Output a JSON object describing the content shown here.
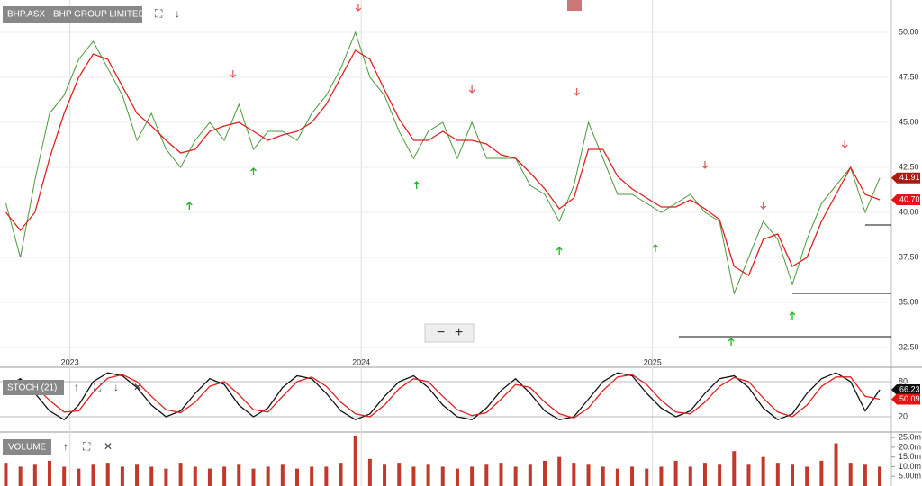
{
  "chart_data": [
    {
      "type": "line",
      "title": "BHP.ASX - BHP GROUP LIMITED",
      "x": [
        2022.78,
        2022.83,
        2022.88,
        2022.93,
        2022.98,
        2023.03,
        2023.08,
        2023.13,
        2023.18,
        2023.23,
        2023.28,
        2023.33,
        2023.38,
        2023.43,
        2023.48,
        2023.53,
        2023.58,
        2023.63,
        2023.68,
        2023.73,
        2023.78,
        2023.83,
        2023.88,
        2023.93,
        2023.98,
        2024.03,
        2024.08,
        2024.13,
        2024.18,
        2024.23,
        2024.28,
        2024.33,
        2024.38,
        2024.43,
        2024.48,
        2024.53,
        2024.58,
        2024.63,
        2024.68,
        2024.73,
        2024.78,
        2024.83,
        2024.88,
        2024.93,
        2024.98,
        2025.03,
        2025.08,
        2025.13,
        2025.18,
        2025.23,
        2025.28,
        2025.33,
        2025.38,
        2025.43,
        2025.48,
        2025.53,
        2025.58,
        2025.63,
        2025.68,
        2025.73,
        2025.78
      ],
      "series": [
        {
          "color": "#4a9a3a",
          "values": [
            40.5,
            37.5,
            41.8,
            45.5,
            46.5,
            48.5,
            49.5,
            48,
            46.5,
            44,
            45.5,
            43.5,
            42.5,
            44,
            45,
            44,
            46,
            43.5,
            44.5,
            44.5,
            44,
            45.5,
            46.5,
            48,
            50,
            47.5,
            46.5,
            44.5,
            43,
            44.5,
            45,
            43,
            45,
            43,
            43,
            43,
            41.5,
            41,
            39.5,
            41.5,
            45,
            43,
            41,
            41,
            40.5,
            40,
            40.5,
            41,
            40,
            39.5,
            35.5,
            37.5,
            39.5,
            38.5,
            36,
            38.5,
            40.5,
            41.5,
            42.5,
            40,
            41.91
          ]
        },
        {
          "color": "#e02020",
          "values": [
            40,
            39,
            40,
            43,
            45.5,
            47.5,
            48.8,
            48.5,
            47,
            45.5,
            44.8,
            44,
            43.3,
            43.5,
            44.5,
            44.8,
            45,
            44.5,
            44,
            44.3,
            44.5,
            45,
            46,
            47.5,
            49,
            48.5,
            46.8,
            45.2,
            44,
            44,
            44.5,
            44,
            44,
            43.8,
            43.2,
            43,
            42.2,
            41.3,
            40.2,
            40.8,
            43.5,
            43.5,
            42,
            41.3,
            40.8,
            40.3,
            40.3,
            40.7,
            40.2,
            39.6,
            37,
            36.5,
            38.5,
            38.8,
            37,
            37.5,
            39.5,
            41,
            42.5,
            41,
            40.7
          ]
        }
      ],
      "xlim": [
        2022.76,
        2025.82
      ],
      "xticks": [
        2023,
        2024,
        2025
      ],
      "ylim": [
        32.05,
        51.8
      ],
      "yticks": [
        {
          "value": 32.5,
          "label": "32.50"
        },
        {
          "value": 35,
          "label": "35.00"
        },
        {
          "value": 37.5,
          "label": "37.50"
        },
        {
          "value": 40,
          "label": "40.00"
        },
        {
          "value": 42.5,
          "label": "42.50"
        },
        {
          "value": 45,
          "label": "45.00"
        },
        {
          "value": 47.5,
          "label": "47.50"
        },
        {
          "value": 50,
          "label": "50.00"
        }
      ],
      "grid": true,
      "tags": [
        {
          "value": 41.91,
          "label": "41.91",
          "color": "#a81d12"
        },
        {
          "value": 40.7,
          "label": "40.70",
          "color": "#e81010"
        }
      ],
      "levels": [
        {
          "value": 39.3,
          "from": 2025.73
        },
        {
          "value": 35.5,
          "from": 2025.48
        },
        {
          "value": 33.1,
          "from": 2025.09
        }
      ],
      "down_signals": {
        "color": "#e06060",
        "x": [
          2023.56,
          2023.99,
          2024.38,
          2024.74,
          2025.18,
          2025.38,
          2025.66
        ],
        "values": [
          47.7,
          51.4,
          46.85,
          46.7,
          42.65,
          40.4,
          43.8
        ]
      },
      "up_signals": {
        "color": "#22b522",
        "x": [
          2023.41,
          2023.63,
          2024.19,
          2024.68,
          2025.01,
          2025.27,
          2025.48
        ],
        "values": [
          40.35,
          42.25,
          41.5,
          37.85,
          38.0,
          32.8,
          34.25
        ]
      }
    },
    {
      "type": "line",
      "title": "STOCH (21)",
      "x": [
        2022.78,
        2022.83,
        2022.88,
        2022.93,
        2022.98,
        2023.03,
        2023.08,
        2023.13,
        2023.18,
        2023.23,
        2023.28,
        2023.33,
        2023.38,
        2023.43,
        2023.48,
        2023.53,
        2023.58,
        2023.63,
        2023.68,
        2023.73,
        2023.78,
        2023.83,
        2023.88,
        2023.93,
        2023.98,
        2024.03,
        2024.08,
        2024.13,
        2024.18,
        2024.23,
        2024.28,
        2024.33,
        2024.38,
        2024.43,
        2024.48,
        2024.53,
        2024.58,
        2024.63,
        2024.68,
        2024.73,
        2024.78,
        2024.83,
        2024.88,
        2024.93,
        2024.98,
        2025.03,
        2025.08,
        2025.13,
        2025.18,
        2025.23,
        2025.28,
        2025.33,
        2025.38,
        2025.43,
        2025.48,
        2025.53,
        2025.58,
        2025.63,
        2025.68,
        2025.73,
        2025.78
      ],
      "series": [
        {
          "color": "#111111",
          "values": [
            70,
            85,
            60,
            30,
            15,
            40,
            80,
            95,
            90,
            70,
            40,
            20,
            30,
            60,
            85,
            75,
            40,
            20,
            35,
            70,
            90,
            85,
            60,
            30,
            15,
            25,
            55,
            80,
            90,
            70,
            40,
            20,
            15,
            35,
            65,
            85,
            60,
            30,
            15,
            20,
            50,
            80,
            95,
            90,
            60,
            35,
            20,
            30,
            60,
            85,
            90,
            70,
            35,
            15,
            25,
            60,
            85,
            95,
            80,
            30,
            66.23
          ]
        },
        {
          "color": "#e02020",
          "values": [
            65,
            78,
            72,
            48,
            28,
            30,
            62,
            86,
            92,
            80,
            55,
            32,
            27,
            45,
            72,
            80,
            58,
            32,
            28,
            55,
            80,
            88,
            72,
            45,
            25,
            20,
            40,
            68,
            85,
            80,
            55,
            32,
            22,
            27,
            50,
            75,
            70,
            45,
            25,
            18,
            35,
            65,
            88,
            92,
            75,
            48,
            28,
            25,
            45,
            72,
            87,
            80,
            52,
            28,
            20,
            40,
            72,
            88,
            88,
            55,
            50.09
          ]
        }
      ],
      "xlim": [
        2022.76,
        2025.82
      ],
      "ylim": [
        -3,
        101.5
      ],
      "yticks": [
        20,
        80
      ],
      "tags": [
        {
          "value": 66.23,
          "label": "66.23",
          "color": "#111111"
        },
        {
          "value": 50.09,
          "label": "50.09",
          "color": "#e81010"
        }
      ]
    },
    {
      "type": "bar",
      "title": "VOLUME",
      "x": [
        2022.78,
        2022.83,
        2022.88,
        2022.93,
        2022.98,
        2023.03,
        2023.08,
        2023.13,
        2023.18,
        2023.23,
        2023.28,
        2023.33,
        2023.38,
        2023.43,
        2023.48,
        2023.53,
        2023.58,
        2023.63,
        2023.68,
        2023.73,
        2023.78,
        2023.83,
        2023.88,
        2023.93,
        2023.98,
        2024.03,
        2024.08,
        2024.13,
        2024.18,
        2024.23,
        2024.28,
        2024.33,
        2024.38,
        2024.43,
        2024.48,
        2024.53,
        2024.58,
        2024.63,
        2024.68,
        2024.73,
        2024.78,
        2024.83,
        2024.88,
        2024.93,
        2024.98,
        2025.03,
        2025.08,
        2025.13,
        2025.18,
        2025.23,
        2025.28,
        2025.33,
        2025.38,
        2025.43,
        2025.48,
        2025.53,
        2025.58,
        2025.63,
        2025.68,
        2025.73,
        2025.78
      ],
      "color": "#c0392b",
      "values": [
        12,
        10,
        11,
        13,
        10,
        9,
        11,
        12,
        10,
        11,
        10,
        9,
        12,
        10,
        9,
        10,
        11,
        9,
        10,
        11,
        9,
        10,
        10,
        12,
        26,
        14,
        11,
        12,
        10,
        11,
        10,
        9,
        10,
        11,
        12,
        10,
        11,
        13,
        15,
        12,
        11,
        10,
        9,
        10,
        9,
        10,
        13,
        10,
        12,
        11,
        18,
        11,
        15,
        12,
        11,
        10,
        13,
        22,
        12,
        11,
        10
      ],
      "xlim": [
        2022.76,
        2025.82
      ],
      "ylim": [
        0,
        26.9
      ],
      "yticks": [
        {
          "value": 5,
          "label": "5.00m"
        },
        {
          "value": 10,
          "label": "10.0m"
        },
        {
          "value": 15,
          "label": "15.0m"
        },
        {
          "value": 20,
          "label": "20.0m"
        },
        {
          "value": 25,
          "label": "25.0m"
        }
      ]
    }
  ]
}
